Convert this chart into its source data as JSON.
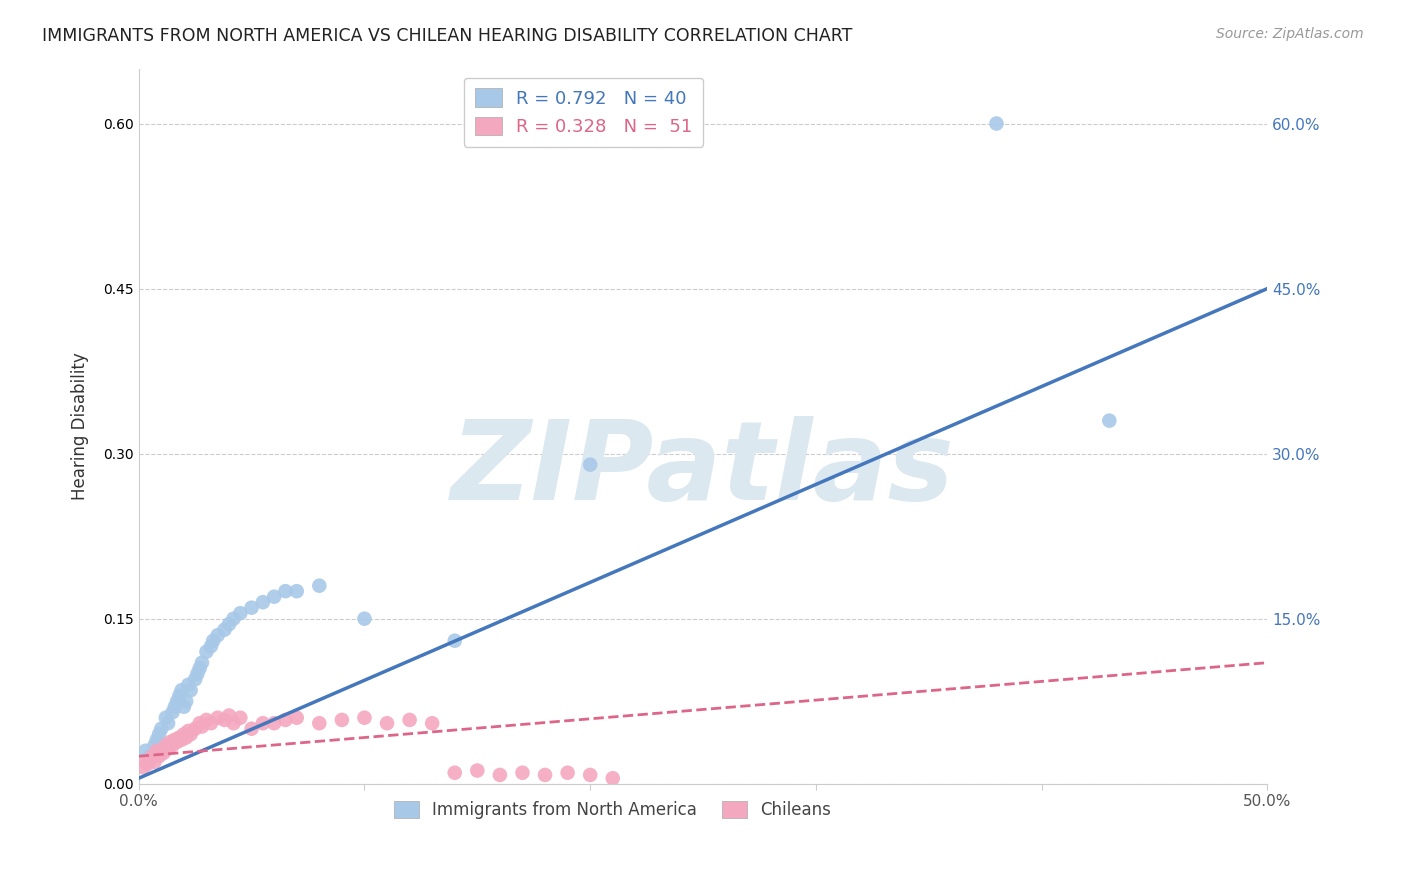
{
  "title": "IMMIGRANTS FROM NORTH AMERICA VS CHILEAN HEARING DISABILITY CORRELATION CHART",
  "source": "Source: ZipAtlas.com",
  "ylabel": "Hearing Disability",
  "xlim": [
    0.0,
    0.5
  ],
  "ylim": [
    0.0,
    0.65
  ],
  "x_ticks": [
    0.0,
    0.1,
    0.2,
    0.3,
    0.4,
    0.5
  ],
  "x_tick_labels": [
    "0.0%",
    "",
    "",
    "",
    "",
    "50.0%"
  ],
  "y_ticks": [
    0.0,
    0.15,
    0.3,
    0.45,
    0.6
  ],
  "y_tick_labels": [
    "",
    "15.0%",
    "30.0%",
    "45.0%",
    "60.0%"
  ],
  "blue_R": 0.792,
  "blue_N": 40,
  "pink_R": 0.328,
  "pink_N": 51,
  "blue_color": "#a8c8e8",
  "pink_color": "#f4a8c0",
  "blue_line_color": "#4477bb",
  "pink_line_color": "#dd6688",
  "legend_blue_label": "Immigrants from North America",
  "legend_pink_label": "Chileans",
  "blue_scatter_x": [
    0.003,
    0.005,
    0.007,
    0.008,
    0.009,
    0.01,
    0.012,
    0.013,
    0.015,
    0.016,
    0.017,
    0.018,
    0.019,
    0.02,
    0.021,
    0.022,
    0.023,
    0.025,
    0.026,
    0.027,
    0.028,
    0.03,
    0.032,
    0.033,
    0.035,
    0.038,
    0.04,
    0.042,
    0.045,
    0.05,
    0.055,
    0.06,
    0.065,
    0.07,
    0.08,
    0.1,
    0.14,
    0.2,
    0.38,
    0.43
  ],
  "blue_scatter_y": [
    0.03,
    0.025,
    0.035,
    0.04,
    0.045,
    0.05,
    0.06,
    0.055,
    0.065,
    0.07,
    0.075,
    0.08,
    0.085,
    0.07,
    0.075,
    0.09,
    0.085,
    0.095,
    0.1,
    0.105,
    0.11,
    0.12,
    0.125,
    0.13,
    0.135,
    0.14,
    0.145,
    0.15,
    0.155,
    0.16,
    0.165,
    0.17,
    0.175,
    0.175,
    0.18,
    0.15,
    0.13,
    0.29,
    0.6,
    0.33
  ],
  "pink_scatter_x": [
    0.002,
    0.003,
    0.004,
    0.005,
    0.006,
    0.007,
    0.008,
    0.009,
    0.01,
    0.011,
    0.012,
    0.013,
    0.014,
    0.015,
    0.016,
    0.017,
    0.018,
    0.019,
    0.02,
    0.021,
    0.022,
    0.023,
    0.025,
    0.027,
    0.028,
    0.03,
    0.032,
    0.035,
    0.038,
    0.04,
    0.042,
    0.045,
    0.05,
    0.055,
    0.06,
    0.065,
    0.07,
    0.08,
    0.09,
    0.1,
    0.11,
    0.12,
    0.13,
    0.14,
    0.15,
    0.16,
    0.17,
    0.18,
    0.19,
    0.2,
    0.21
  ],
  "pink_scatter_y": [
    0.015,
    0.02,
    0.018,
    0.022,
    0.025,
    0.02,
    0.03,
    0.025,
    0.03,
    0.028,
    0.035,
    0.032,
    0.038,
    0.035,
    0.04,
    0.038,
    0.042,
    0.04,
    0.045,
    0.042,
    0.048,
    0.045,
    0.05,
    0.055,
    0.052,
    0.058,
    0.055,
    0.06,
    0.058,
    0.062,
    0.055,
    0.06,
    0.05,
    0.055,
    0.055,
    0.058,
    0.06,
    0.055,
    0.058,
    0.06,
    0.055,
    0.058,
    0.055,
    0.01,
    0.012,
    0.008,
    0.01,
    0.008,
    0.01,
    0.008,
    0.005
  ],
  "background_color": "#ffffff",
  "grid_color": "#cccccc",
  "watermark_text": "ZIPatlas",
  "watermark_color": "#dce8f0"
}
